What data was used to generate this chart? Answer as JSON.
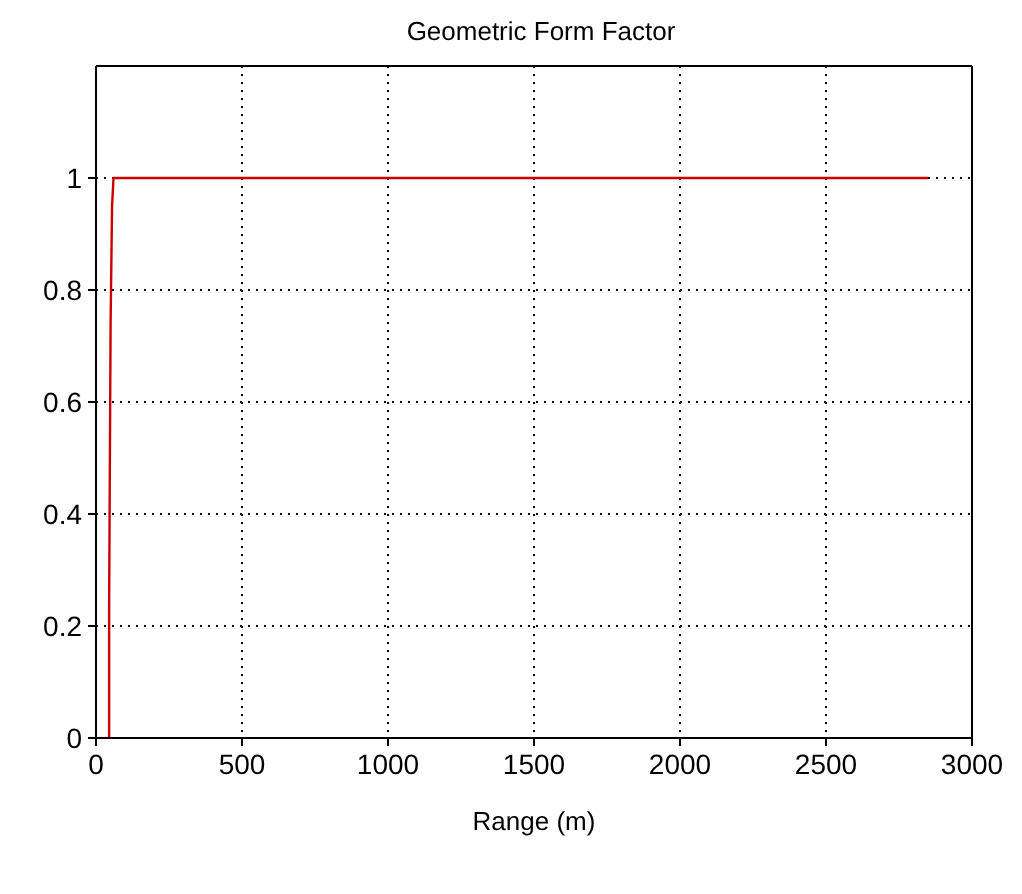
{
  "chart_data": {
    "type": "line",
    "title": "Geometric Form Factor",
    "xlabel": "Range (m)",
    "x": [
      45,
      45,
      50,
      55,
      60,
      2850
    ],
    "series": [
      {
        "color": "#cc0000",
        "values": [
          0,
          0.24,
          0.74,
          0.95,
          1,
          1
        ]
      }
    ],
    "xlim": [
      0,
      3000
    ],
    "xticks": [
      0,
      500,
      1000,
      1500,
      2000,
      2500,
      3000
    ],
    "ylim": [
      0,
      1.2
    ],
    "yticks": [
      0,
      0.2,
      0.4,
      0.6,
      0.8,
      1
    ],
    "grid": true,
    "marker": "none",
    "line_style": "solid"
  }
}
